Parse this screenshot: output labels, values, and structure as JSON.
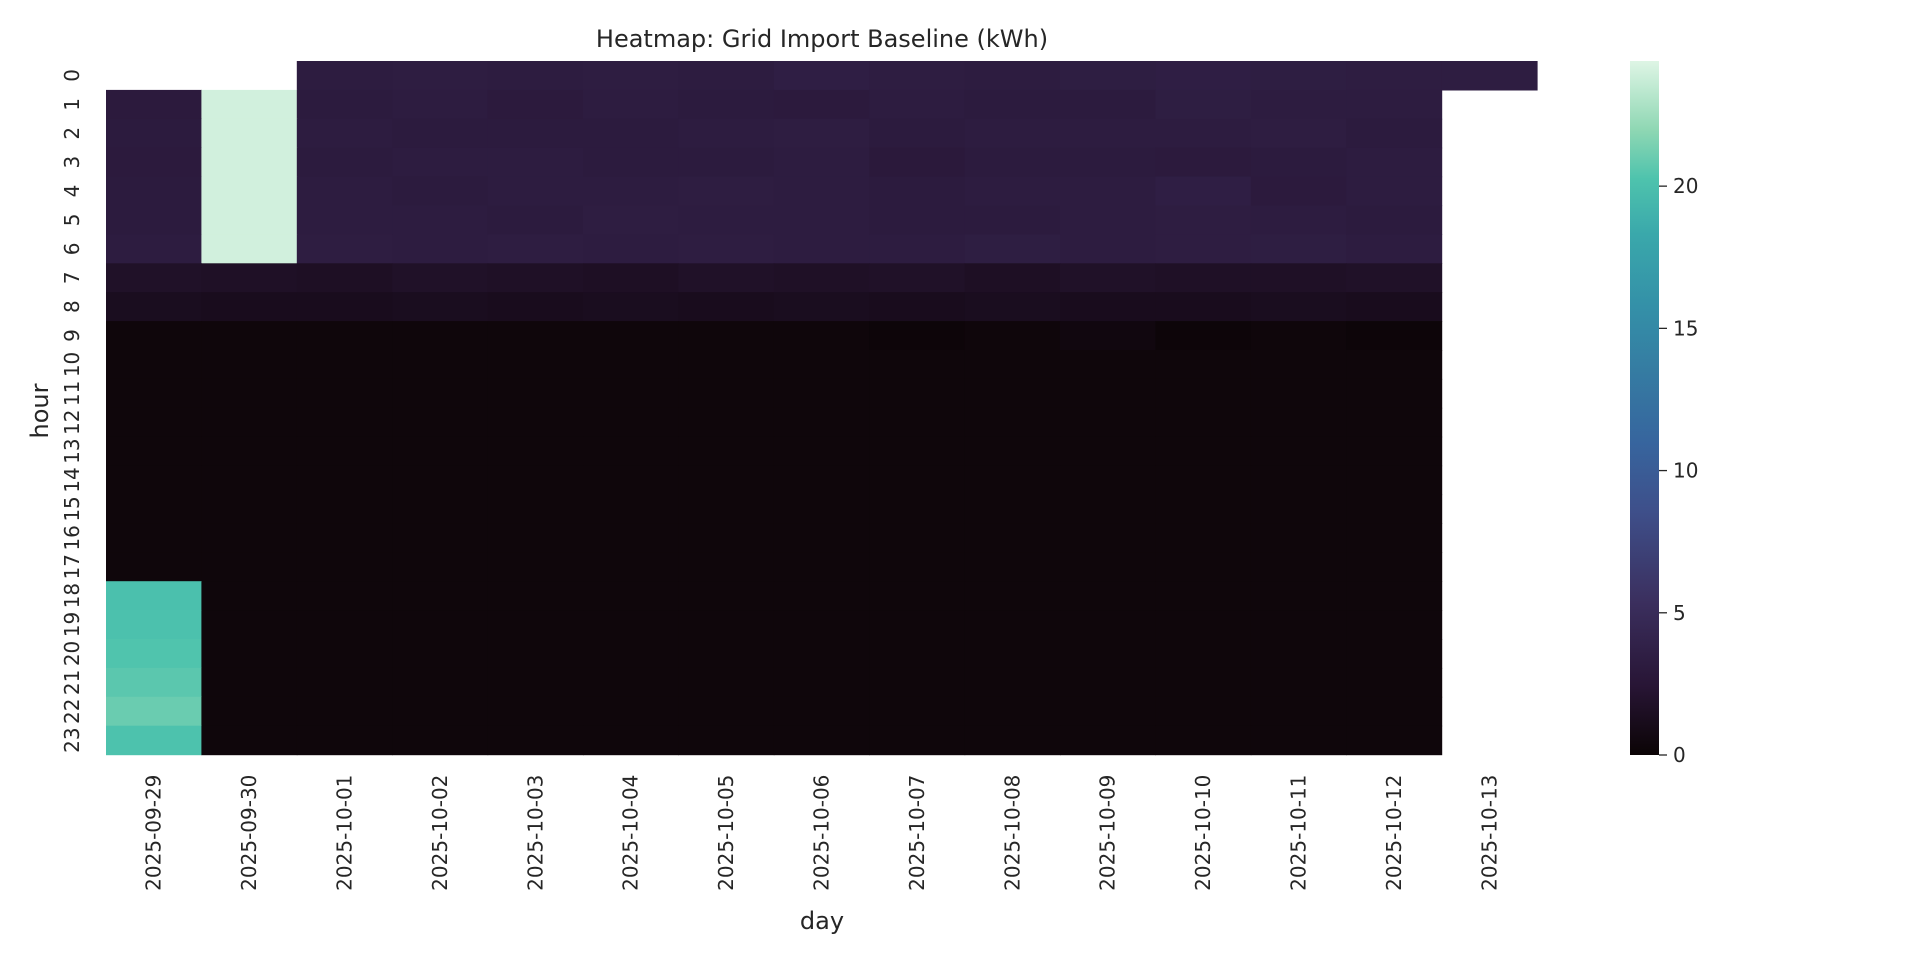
{
  "chart_data": {
    "type": "heatmap",
    "title": "Heatmap: Grid Import Baseline (kWh)",
    "xlabel": "day",
    "ylabel": "hour",
    "colormap": "mako",
    "colorbar": {
      "range": [
        0,
        24.4
      ],
      "ticks": [
        0,
        5,
        10,
        15,
        20
      ]
    },
    "days": [
      "2025-09-29",
      "2025-09-30",
      "2025-10-01",
      "2025-10-02",
      "2025-10-03",
      "2025-10-04",
      "2025-10-05",
      "2025-10-06",
      "2025-10-07",
      "2025-10-08",
      "2025-10-09",
      "2025-10-10",
      "2025-10-11",
      "2025-10-12",
      "2025-10-13"
    ],
    "hours": [
      "0",
      "1",
      "2",
      "3",
      "4",
      "5",
      "6",
      "7",
      "8",
      "9",
      "10",
      "11",
      "12",
      "13",
      "14",
      "15",
      "16",
      "17",
      "18",
      "19",
      "20",
      "21",
      "22",
      "23"
    ],
    "hour_tick_labels": [
      "0",
      "1",
      "2",
      "3",
      "4",
      "5",
      "6",
      "7",
      "8",
      "9",
      "10",
      "11",
      "12",
      "13",
      "14",
      "15",
      "16",
      "17",
      "18",
      "19",
      "20",
      "21",
      "22",
      "23"
    ],
    "values": [
      [
        null,
        null,
        3.2,
        3.3,
        3.2,
        3.3,
        3.2,
        3.5,
        3.3,
        3.2,
        3.4,
        3.5,
        3.4,
        3.3,
        3.3
      ],
      [
        3.0,
        24.0,
        3.1,
        3.2,
        3.0,
        3.2,
        3.1,
        3.0,
        3.2,
        3.1,
        3.1,
        3.4,
        3.2,
        3.2,
        null
      ],
      [
        3.1,
        24.0,
        3.2,
        3.1,
        3.1,
        3.1,
        3.2,
        3.3,
        3.1,
        3.2,
        3.2,
        3.2,
        3.3,
        3.1,
        null
      ],
      [
        3.0,
        24.0,
        3.1,
        3.2,
        3.2,
        3.1,
        3.1,
        3.2,
        2.9,
        3.1,
        3.1,
        3.0,
        3.1,
        3.2,
        null
      ],
      [
        3.1,
        24.0,
        3.2,
        3.1,
        3.2,
        3.2,
        3.3,
        3.2,
        3.1,
        3.2,
        3.2,
        3.5,
        3.0,
        3.2,
        null
      ],
      [
        3.1,
        24.0,
        3.2,
        3.2,
        3.1,
        3.3,
        3.2,
        3.2,
        3.1,
        3.1,
        3.2,
        3.3,
        3.2,
        3.1,
        null
      ],
      [
        3.2,
        24.0,
        3.3,
        3.2,
        3.3,
        3.2,
        3.3,
        3.2,
        3.2,
        3.4,
        3.2,
        3.3,
        3.4,
        3.2,
        null
      ],
      [
        1.8,
        1.7,
        1.6,
        1.8,
        1.7,
        1.6,
        1.8,
        1.7,
        1.8,
        1.6,
        1.8,
        1.7,
        1.7,
        1.8,
        null
      ],
      [
        1.3,
        1.2,
        1.2,
        1.3,
        1.2,
        1.3,
        1.2,
        1.3,
        1.2,
        1.3,
        1.2,
        1.2,
        1.3,
        1.2,
        null
      ],
      [
        0.3,
        0.3,
        0.3,
        0.3,
        0.3,
        0.3,
        0.3,
        0.3,
        0.2,
        0.3,
        0.5,
        0.2,
        0.3,
        0.2,
        null
      ],
      [
        0.3,
        0.3,
        0.3,
        0.3,
        0.3,
        0.3,
        0.3,
        0.3,
        0.3,
        0.3,
        0.3,
        0.3,
        0.3,
        0.3,
        null
      ],
      [
        0.3,
        0.3,
        0.3,
        0.3,
        0.3,
        0.3,
        0.3,
        0.3,
        0.3,
        0.3,
        0.3,
        0.3,
        0.3,
        0.3,
        null
      ],
      [
        0.3,
        0.3,
        0.3,
        0.3,
        0.3,
        0.3,
        0.3,
        0.3,
        0.3,
        0.3,
        0.3,
        0.3,
        0.3,
        0.3,
        null
      ],
      [
        0.3,
        0.3,
        0.3,
        0.3,
        0.3,
        0.3,
        0.3,
        0.3,
        0.3,
        0.3,
        0.3,
        0.3,
        0.3,
        0.3,
        null
      ],
      [
        0.3,
        0.3,
        0.3,
        0.3,
        0.3,
        0.3,
        0.3,
        0.3,
        0.3,
        0.3,
        0.3,
        0.3,
        0.3,
        0.3,
        null
      ],
      [
        0.3,
        0.3,
        0.3,
        0.3,
        0.3,
        0.3,
        0.3,
        0.3,
        0.3,
        0.3,
        0.3,
        0.3,
        0.3,
        0.3,
        null
      ],
      [
        0.3,
        0.3,
        0.3,
        0.3,
        0.3,
        0.3,
        0.3,
        0.3,
        0.3,
        0.3,
        0.3,
        0.3,
        0.3,
        0.3,
        null
      ],
      [
        0.3,
        0.3,
        0.3,
        0.3,
        0.3,
        0.3,
        0.3,
        0.3,
        0.3,
        0.3,
        0.3,
        0.3,
        0.3,
        0.3,
        null
      ],
      [
        20.0,
        0.3,
        0.3,
        0.3,
        0.3,
        0.3,
        0.3,
        0.3,
        0.3,
        0.3,
        0.3,
        0.3,
        0.3,
        0.3,
        null
      ],
      [
        20.1,
        0.3,
        0.3,
        0.3,
        0.3,
        0.3,
        0.3,
        0.3,
        0.3,
        0.3,
        0.3,
        0.3,
        0.3,
        0.3,
        null
      ],
      [
        20.3,
        0.3,
        0.3,
        0.3,
        0.3,
        0.3,
        0.3,
        0.3,
        0.3,
        0.3,
        0.3,
        0.3,
        0.3,
        0.3,
        null
      ],
      [
        20.6,
        0.3,
        0.3,
        0.3,
        0.3,
        0.3,
        0.3,
        0.3,
        0.3,
        0.3,
        0.3,
        0.3,
        0.3,
        0.3,
        null
      ],
      [
        21.0,
        0.3,
        0.3,
        0.3,
        0.3,
        0.3,
        0.3,
        0.3,
        0.3,
        0.3,
        0.3,
        0.3,
        0.3,
        0.3,
        null
      ],
      [
        20.2,
        0.3,
        0.3,
        0.3,
        0.3,
        0.3,
        0.3,
        0.3,
        0.3,
        0.3,
        0.3,
        0.3,
        0.3,
        0.3,
        null
      ]
    ]
  }
}
